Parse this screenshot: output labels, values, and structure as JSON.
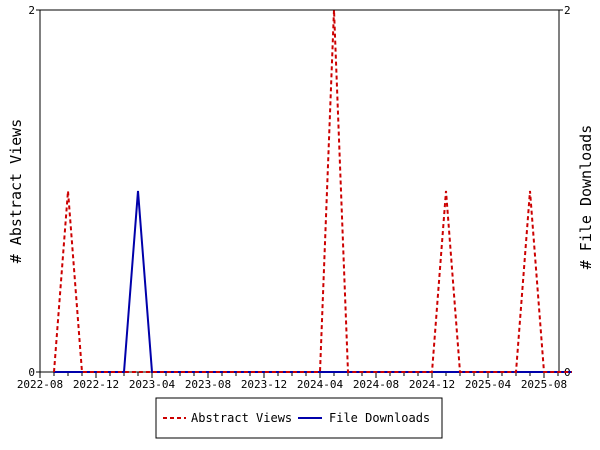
{
  "chart_data": {
    "type": "line",
    "x": [
      "2022-09",
      "2022-10",
      "2022-11",
      "2022-12",
      "2023-01",
      "2023-02",
      "2023-03",
      "2023-04",
      "2023-05",
      "2023-06",
      "2023-07",
      "2023-08",
      "2023-09",
      "2023-10",
      "2023-11",
      "2023-12",
      "2024-01",
      "2024-02",
      "2024-03",
      "2024-04",
      "2024-05",
      "2024-06",
      "2024-07",
      "2024-08",
      "2024-09",
      "2024-10",
      "2024-11",
      "2024-12",
      "2025-01",
      "2025-02",
      "2025-03",
      "2025-04",
      "2025-05",
      "2025-06",
      "2025-07",
      "2025-08",
      "2025-09",
      "2025-10"
    ],
    "x_tick_labels": [
      "2022-08",
      "2022-12",
      "2023-04",
      "2023-08",
      "2023-12",
      "2024-04",
      "2024-08",
      "2024-12",
      "2025-04",
      "2025-08"
    ],
    "ylim_left": [
      0,
      2
    ],
    "ylim_right": [
      0,
      2
    ],
    "y_tick_labels_left": [
      "0",
      "2"
    ],
    "y_tick_labels_right": [
      "0",
      "2"
    ],
    "ylabel_left": "# Abstract Views",
    "ylabel_right": "# File Downloads",
    "grid": false,
    "legend_position": "bottom",
    "series": [
      {
        "name": "Abstract Views",
        "color": "#cc0000",
        "dash": true,
        "axis": "left",
        "values": [
          0,
          1,
          0,
          0,
          0,
          0,
          0,
          0,
          0,
          0,
          0,
          0,
          0,
          0,
          0,
          0,
          0,
          0,
          0,
          0,
          2,
          0,
          0,
          0,
          0,
          0,
          0,
          0,
          1,
          0,
          0,
          0,
          0,
          0,
          1,
          0,
          0,
          0
        ]
      },
      {
        "name": "File Downloads",
        "color": "#0000aa",
        "dash": false,
        "axis": "right",
        "values": [
          0,
          0,
          0,
          0,
          0,
          0,
          1,
          0,
          0,
          0,
          0,
          0,
          0,
          0,
          0,
          0,
          0,
          0,
          0,
          0,
          0,
          0,
          0,
          0,
          0,
          0,
          0,
          0,
          0,
          0,
          0,
          0,
          0,
          0,
          0,
          0,
          0,
          0
        ]
      }
    ]
  }
}
